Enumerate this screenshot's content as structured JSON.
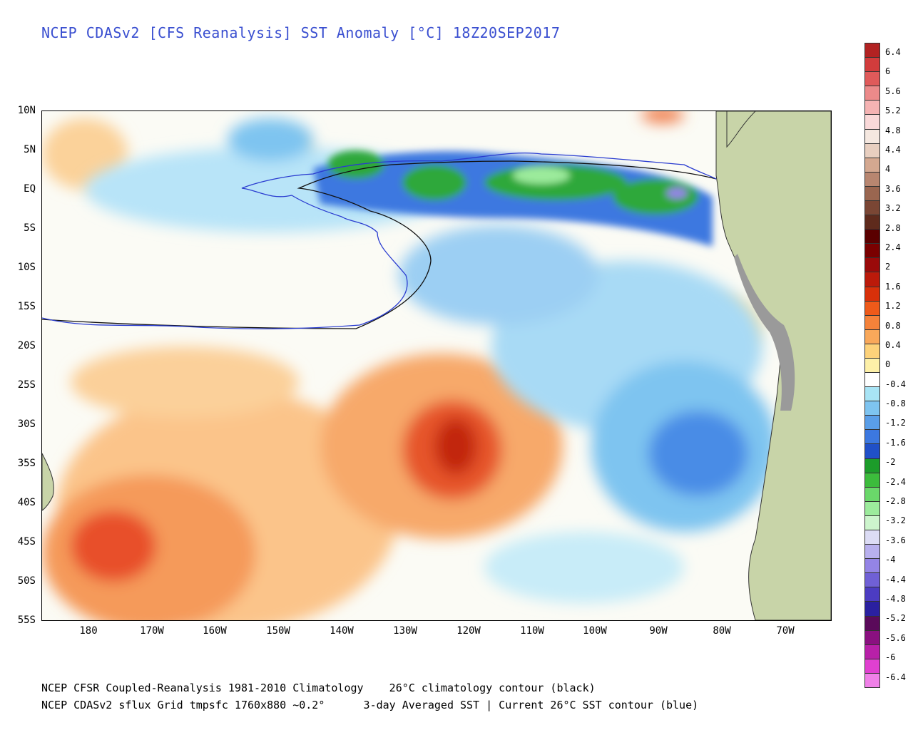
{
  "title": "NCEP CDASv2 [CFS Reanalysis] SST Anomaly [°C] 18Z20SEP2017",
  "lat_labels": [
    "10N",
    "5N",
    "EQ",
    "5S",
    "10S",
    "15S",
    "20S",
    "25S",
    "30S",
    "35S",
    "40S",
    "45S",
    "50S",
    "55S"
  ],
  "lon_labels": [
    "180",
    "170W",
    "160W",
    "150W",
    "140W",
    "130W",
    "120W",
    "110W",
    "100W",
    "90W",
    "80W",
    "70W"
  ],
  "footer": {
    "line1": "NCEP CFSR Coupled-Reanalysis 1981-2010 Climatology    26°C climatology contour (black)",
    "line2": "NCEP CDASv2 sflux Grid tmpsfc 1760x880 ~0.2°      3-day Averaged SST | Current 26°C SST contour (blue)"
  },
  "colorbar": {
    "labels": [
      "6.4",
      "6",
      "5.6",
      "5.2",
      "4.8",
      "4.4",
      "4",
      "3.6",
      "3.2",
      "2.8",
      "2.4",
      "2",
      "1.6",
      "1.2",
      "0.8",
      "0.4",
      "0",
      "-0.4",
      "-0.8",
      "-1.2",
      "-1.6",
      "-2",
      "-2.4",
      "-2.8",
      "-3.2",
      "-3.6",
      "-4",
      "-4.4",
      "-4.8",
      "-5.2",
      "-5.6",
      "-6",
      "-6.4"
    ],
    "colors": [
      "#b22222",
      "#d23c3c",
      "#e05a5a",
      "#ec8a8a",
      "#f5b3b3",
      "#fad9d9",
      "#f5e8e0",
      "#e8cfc0",
      "#d4a890",
      "#b88670",
      "#9a6650",
      "#7a4634",
      "#5e2a1c",
      "#5a0000",
      "#7a0000",
      "#9a0a0a",
      "#bb1a0a",
      "#d8300a",
      "#ee5a1a",
      "#f5823a",
      "#f9a85a",
      "#fdd27a",
      "#fdf0a8",
      "#ffffff",
      "#a8e4f5",
      "#7ec4f0",
      "#5a9ee8",
      "#3c78e0",
      "#2050c8",
      "#1c9c2a",
      "#3cbc3c",
      "#6ad86a",
      "#9ceb9c",
      "#cdf5cd",
      "#dcdcf5",
      "#b8b0ee",
      "#9484e6",
      "#7060d6",
      "#4c3cc2",
      "#2a20a0",
      "#5a0a5a",
      "#8a1080",
      "#b820a8",
      "#e040d0",
      "#f080e8"
    ]
  }
}
